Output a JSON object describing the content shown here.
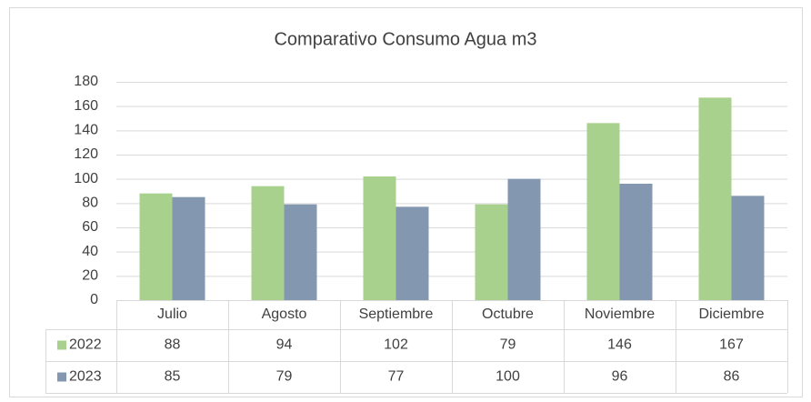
{
  "chart_data": {
    "type": "bar",
    "title": "Comparativo Consumo Agua m3",
    "categories": [
      "Julio",
      "Agosto",
      "Septiembre",
      "Octubre",
      "Noviembre",
      "Diciembre"
    ],
    "series": [
      {
        "name": "2022",
        "color": "#a9d18e",
        "values": [
          88,
          94,
          102,
          79,
          146,
          167
        ]
      },
      {
        "name": "2023",
        "color": "#8497b0",
        "values": [
          85,
          79,
          77,
          100,
          96,
          86
        ]
      }
    ],
    "ylim": [
      0,
      180
    ],
    "yticks": [
      0,
      20,
      40,
      60,
      80,
      100,
      120,
      140,
      160,
      180
    ],
    "grid": true
  }
}
